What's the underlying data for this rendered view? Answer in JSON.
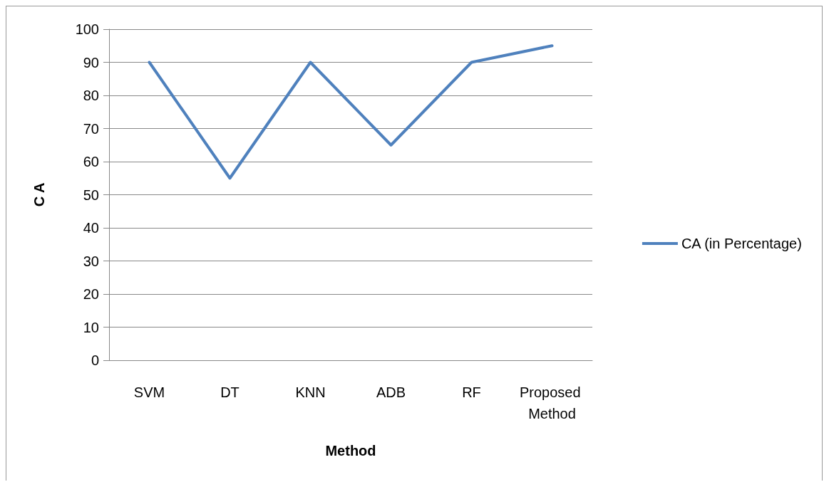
{
  "chart_data": {
    "type": "line",
    "xlabel": "Method",
    "ylabel": "C A",
    "categories": [
      "SVM",
      "DT",
      "KNN",
      "ADB",
      "RF",
      "Proposed Method"
    ],
    "series": [
      {
        "name": "CA (in Percentage)",
        "color": "#4f81bd",
        "values": [
          90,
          55,
          90,
          65,
          90,
          95
        ]
      }
    ],
    "ylim": [
      0,
      100
    ],
    "yticks": [
      0,
      10,
      20,
      30,
      40,
      50,
      60,
      70,
      80,
      90,
      100
    ],
    "grid": "y",
    "legend": "right",
    "marker": "none",
    "line_style": "solid"
  }
}
